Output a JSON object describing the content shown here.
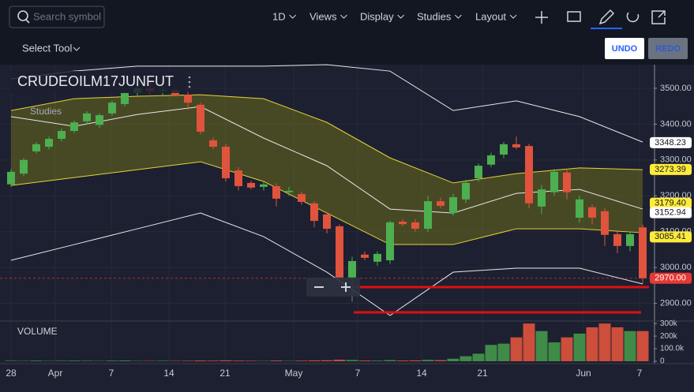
{
  "toolbar": {
    "search_placeholder": "Search symbol",
    "menus": [
      "1D",
      "Views",
      "Display",
      "Studies",
      "Layout"
    ]
  },
  "subbar": {
    "tool": "Select Tool",
    "undo": "UNDO",
    "redo": "REDO"
  },
  "chart_data": {
    "type": "candlestick",
    "title": "CRUDEOILM17JUNFUT",
    "studies_label": "Studies",
    "volume_label": "VOLUME",
    "x_labels": [
      "28",
      "Apr",
      "7",
      "14",
      "21",
      "May",
      "7",
      "14",
      "21",
      "Jun",
      "7"
    ],
    "open": [
      3232,
      3262,
      3324,
      3337,
      3359,
      3381,
      3408,
      3398,
      3430,
      3456,
      3487,
      3500,
      3492,
      3495,
      3482,
      3454,
      3355,
      3337,
      3271,
      3236,
      3225,
      3227,
      3210,
      3205,
      3179,
      3148,
      3115,
      2972,
      3036,
      3016,
      3020,
      3128,
      3126,
      3108,
      3185,
      3152,
      3190,
      3249,
      3287,
      3315,
      3344,
      3339,
      3170,
      3210,
      3265,
      3139,
      3168,
      3157,
      3093,
      3060,
      3112
    ],
    "high": [
      3275,
      3305,
      3350,
      3365,
      3388,
      3410,
      3436,
      3430,
      3465,
      3492,
      3510,
      3515,
      3505,
      3498,
      3490,
      3460,
      3362,
      3345,
      3280,
      3242,
      3238,
      3235,
      3225,
      3212,
      3185,
      3155,
      3120,
      3030,
      3045,
      3045,
      3130,
      3135,
      3135,
      3200,
      3195,
      3205,
      3245,
      3290,
      3320,
      3350,
      3365,
      3345,
      3230,
      3275,
      3275,
      3200,
      3175,
      3165,
      3100,
      3100,
      3120
    ],
    "low": [
      3225,
      3255,
      3318,
      3330,
      3352,
      3375,
      3400,
      3390,
      3424,
      3450,
      3478,
      3485,
      3480,
      3478,
      3440,
      3372,
      3330,
      3240,
      3215,
      3218,
      3215,
      3170,
      3200,
      3175,
      3112,
      3095,
      2965,
      2905,
      3020,
      3005,
      3010,
      3115,
      3100,
      3100,
      3165,
      3145,
      3180,
      3240,
      3280,
      3305,
      3330,
      3165,
      3150,
      3200,
      3190,
      3125,
      3120,
      3060,
      3040,
      3045,
      2955
    ],
    "close": [
      3267,
      3300,
      3344,
      3359,
      3381,
      3405,
      3430,
      3425,
      3460,
      3487,
      3500,
      3492,
      3495,
      3480,
      3460,
      3379,
      3337,
      3249,
      3227,
      3223,
      3232,
      3192,
      3214,
      3183,
      3130,
      3108,
      2972,
      3018,
      3027,
      3038,
      3126,
      3121,
      3108,
      3185,
      3172,
      3196,
      3236,
      3284,
      3313,
      3344,
      3335,
      3179,
      3218,
      3267,
      3210,
      3190,
      3139,
      3091,
      3060,
      3093,
      2970
    ],
    "colors": {
      "up": "#4caf50",
      "down": "#e0533d"
    },
    "ylim": [
      2855,
      3566
    ],
    "yticks": [
      {
        "value": 2900,
        "label": "2900.00"
      },
      {
        "value": 3000,
        "label": "3000.00"
      },
      {
        "value": 3100,
        "label": "3100.00"
      },
      {
        "value": 3200,
        "label": "3200.00"
      },
      {
        "value": 3300,
        "label": "3300.00"
      },
      {
        "value": 3400,
        "label": "3400.00"
      },
      {
        "value": 3500,
        "label": "3500.00"
      }
    ],
    "volume": [
      4000,
      3000,
      5000,
      3000,
      4000,
      5000,
      4000,
      3000,
      5000,
      6000,
      3000,
      3000,
      4000,
      3000,
      4000,
      6000,
      5000,
      7000,
      5000,
      4000,
      3000,
      6000,
      3000,
      5000,
      7000,
      8000,
      12000,
      10000,
      6000,
      5000,
      9000,
      6000,
      7000,
      11000,
      9000,
      20000,
      40000,
      60000,
      130000,
      140000,
      190000,
      300000,
      240000,
      150000,
      190000,
      220000,
      270000,
      300000,
      270000,
      240000,
      240000
    ],
    "volume_ylim": [
      0,
      320000
    ],
    "volume_yticks": [
      0,
      {
        "value": 100000,
        "label": "100.0k"
      },
      {
        "value": 200000,
        "label": "200k"
      },
      {
        "value": 300000,
        "label": "300k"
      }
    ],
    "band_x": [
      0,
      5,
      10,
      15,
      20,
      25,
      30,
      35,
      40,
      45,
      50
    ],
    "bands": [
      {
        "color": "#e8e8e8",
        "values": [
          3526,
          3548,
          3562,
          3562,
          3562,
          3566,
          3548,
          3438,
          3465,
          3421,
          3350
        ]
      },
      {
        "color": "#e6d23a",
        "values": [
          3438,
          3471,
          3478,
          3482,
          3471,
          3405,
          3306,
          3236,
          3262,
          3278,
          3273
        ]
      },
      {
        "color": "#e8e8e8",
        "values": [
          3421,
          3394,
          3427,
          3449,
          3361,
          3284,
          3163,
          3152,
          3207,
          3218,
          3163
        ]
      },
      {
        "color": "#e6d23a",
        "values": [
          3229,
          3251,
          3273,
          3295,
          3240,
          3152,
          3064,
          3064,
          3108,
          3108,
          3097
        ]
      },
      {
        "color": "#e8e8e8",
        "values": [
          3020,
          3064,
          3108,
          3152,
          3086,
          2987,
          2866,
          2987,
          2998,
          2998,
          2954
        ]
      }
    ],
    "band_fill": "#6b6b1e",
    "price_tags": [
      {
        "value": 3348.23,
        "color": "#ffffff"
      },
      {
        "value": 3273.39,
        "color": "#ffeb3b"
      },
      {
        "value": {
          "value": 3179.4,
          "label": "3179.40"
        },
        "color": "#ffeb3b"
      },
      {
        "value": 3152.94,
        "color": "#ffffff"
      },
      {
        "value": 3085.41,
        "color": "#ffeb3b"
      },
      {
        "value": {
          "value": 2970,
          "label": "2970.00"
        },
        "color": "#e53935"
      }
    ]
  }
}
